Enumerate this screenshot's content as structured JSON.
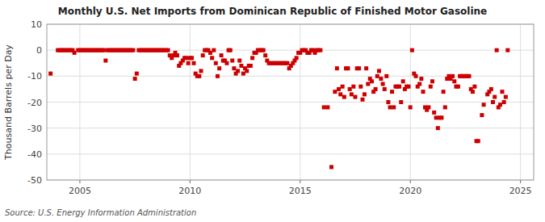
{
  "chart_data": {
    "type": "scatter",
    "title": "Monthly U.S. Net Imports from Dominican Republic of Finished Motor Gasoline",
    "ylabel": "Thousand Barrels per Day",
    "source": "Source: U.S. Energy Information Administration",
    "color": "#cc0000",
    "marker": "square",
    "grid": true,
    "xlim": [
      2003.5,
      2025.6
    ],
    "ylim": [
      -50,
      10
    ],
    "xticks": [
      2005,
      2010,
      2015,
      2020,
      2025
    ],
    "yticks": [
      -50,
      -40,
      -30,
      -20,
      -10,
      0,
      10
    ],
    "x": [
      2003.67,
      2004.0,
      2004.08,
      2004.17,
      2004.25,
      2004.33,
      2004.42,
      2004.5,
      2004.58,
      2004.67,
      2004.75,
      2004.92,
      2005.0,
      2005.08,
      2005.17,
      2005.25,
      2005.33,
      2005.42,
      2005.5,
      2005.58,
      2005.67,
      2005.75,
      2005.83,
      2005.92,
      2006.0,
      2006.08,
      2006.17,
      2006.25,
      2006.33,
      2006.42,
      2006.5,
      2006.58,
      2006.67,
      2006.75,
      2006.83,
      2006.92,
      2007.0,
      2007.08,
      2007.17,
      2007.25,
      2007.33,
      2007.42,
      2007.5,
      2007.58,
      2007.67,
      2007.75,
      2007.83,
      2007.92,
      2008.0,
      2008.08,
      2008.17,
      2008.25,
      2008.33,
      2008.42,
      2008.5,
      2008.58,
      2008.67,
      2008.75,
      2008.83,
      2008.92,
      2009.0,
      2009.08,
      2009.17,
      2009.25,
      2009.33,
      2009.42,
      2009.5,
      2009.58,
      2009.67,
      2009.75,
      2009.83,
      2009.92,
      2010.0,
      2010.08,
      2010.17,
      2010.25,
      2010.33,
      2010.42,
      2010.5,
      2010.58,
      2010.67,
      2010.75,
      2010.83,
      2010.92,
      2011.0,
      2011.08,
      2011.17,
      2011.25,
      2011.33,
      2011.42,
      2011.5,
      2011.58,
      2011.67,
      2011.75,
      2011.83,
      2011.92,
      2012.0,
      2012.08,
      2012.17,
      2012.25,
      2012.33,
      2012.42,
      2012.5,
      2012.58,
      2012.67,
      2012.75,
      2012.83,
      2012.92,
      2013.0,
      2013.08,
      2013.17,
      2013.25,
      2013.33,
      2013.42,
      2013.5,
      2013.58,
      2013.67,
      2013.75,
      2013.83,
      2013.92,
      2014.0,
      2014.08,
      2014.17,
      2014.25,
      2014.33,
      2014.42,
      2014.5,
      2014.58,
      2014.67,
      2014.75,
      2014.83,
      2014.92,
      2015.0,
      2015.08,
      2015.17,
      2015.25,
      2015.33,
      2015.42,
      2015.5,
      2015.58,
      2015.67,
      2015.75,
      2015.83,
      2015.92,
      2016.08,
      2016.25,
      2016.42,
      2016.58,
      2016.67,
      2016.75,
      2016.83,
      2016.92,
      2017.0,
      2017.08,
      2017.17,
      2017.25,
      2017.33,
      2017.42,
      2017.5,
      2017.58,
      2017.67,
      2017.75,
      2017.83,
      2017.92,
      2018.0,
      2018.08,
      2018.17,
      2018.25,
      2018.33,
      2018.42,
      2018.5,
      2018.58,
      2018.67,
      2018.75,
      2018.83,
      2018.92,
      2019.0,
      2019.08,
      2019.17,
      2019.25,
      2019.33,
      2019.42,
      2019.5,
      2019.58,
      2019.67,
      2019.75,
      2019.83,
      2019.92,
      2020.0,
      2020.08,
      2020.17,
      2020.25,
      2020.33,
      2020.42,
      2020.5,
      2020.58,
      2020.67,
      2020.75,
      2020.83,
      2020.92,
      2021.0,
      2021.08,
      2021.17,
      2021.25,
      2021.33,
      2021.42,
      2021.5,
      2021.58,
      2021.67,
      2021.75,
      2021.83,
      2021.92,
      2022.0,
      2022.08,
      2022.17,
      2022.25,
      2022.33,
      2022.42,
      2022.5,
      2022.58,
      2022.67,
      2022.75,
      2022.83,
      2022.92,
      2023.0,
      2023.08,
      2023.25,
      2023.33,
      2023.5,
      2023.58,
      2023.67,
      2023.75,
      2023.83,
      2023.92,
      2024.0,
      2024.08,
      2024.17,
      2024.25,
      2024.33,
      2024.42
    ],
    "values": [
      -9,
      0,
      0,
      0,
      0,
      0,
      0,
      0,
      0,
      0,
      -1,
      0,
      0,
      0,
      0,
      0,
      0,
      0,
      0,
      0,
      0,
      0,
      0,
      0,
      0,
      0,
      -4,
      0,
      0,
      0,
      0,
      0,
      0,
      0,
      0,
      0,
      0,
      0,
      0,
      0,
      0,
      0,
      -11,
      -9,
      0,
      0,
      0,
      0,
      0,
      0,
      0,
      0,
      0,
      0,
      0,
      0,
      0,
      0,
      0,
      0,
      0,
      -2,
      -3,
      -2,
      -1,
      -2,
      -6,
      -5,
      -4,
      -3,
      -3,
      -5,
      -3,
      -3,
      -5,
      -9,
      -10,
      -10,
      -8,
      -2,
      0,
      0,
      0,
      -1,
      -3,
      0,
      -5,
      -10,
      -7,
      -2,
      -4,
      -4,
      -5,
      0,
      0,
      -4,
      -7,
      -9,
      -8,
      -4,
      -6,
      -9,
      -7,
      -8,
      -6,
      -6,
      -3,
      -1,
      -1,
      0,
      0,
      0,
      0,
      -2,
      -4,
      -5,
      -5,
      -5,
      -5,
      -5,
      -5,
      -5,
      -5,
      -5,
      -5,
      -5,
      -7,
      -6,
      -5,
      -4,
      -3,
      -1,
      -1,
      0,
      0,
      0,
      -1,
      -1,
      0,
      0,
      -1,
      0,
      0,
      0,
      -22,
      -22,
      -45,
      -16,
      -7,
      -15,
      -17,
      -14,
      -18,
      -7,
      -7,
      -15,
      -17,
      -14,
      -18,
      -7,
      -7,
      -14,
      -19,
      -17,
      -7,
      -13,
      -11,
      -12,
      -16,
      -15,
      -10,
      -8,
      -11,
      -13,
      -15,
      -10,
      -20,
      -22,
      -16,
      -22,
      -14,
      -14,
      -14,
      -20,
      -12,
      -15,
      -14,
      -14,
      -22,
      0,
      -9,
      -10,
      -14,
      -13,
      -11,
      -16,
      -22,
      -23,
      -22,
      -14,
      -12,
      -24,
      -26,
      -30,
      -26,
      -26,
      -16,
      -22,
      -11,
      -10,
      -11,
      -10,
      -12,
      -14,
      -14,
      -10,
      -10,
      -10,
      -10,
      -10,
      -10,
      -15,
      -16,
      -14,
      -35,
      -35,
      -25,
      -21,
      -17,
      -16,
      -15,
      -20,
      -18,
      0,
      -22,
      -21,
      -16,
      -20,
      -18,
      0
    ]
  }
}
